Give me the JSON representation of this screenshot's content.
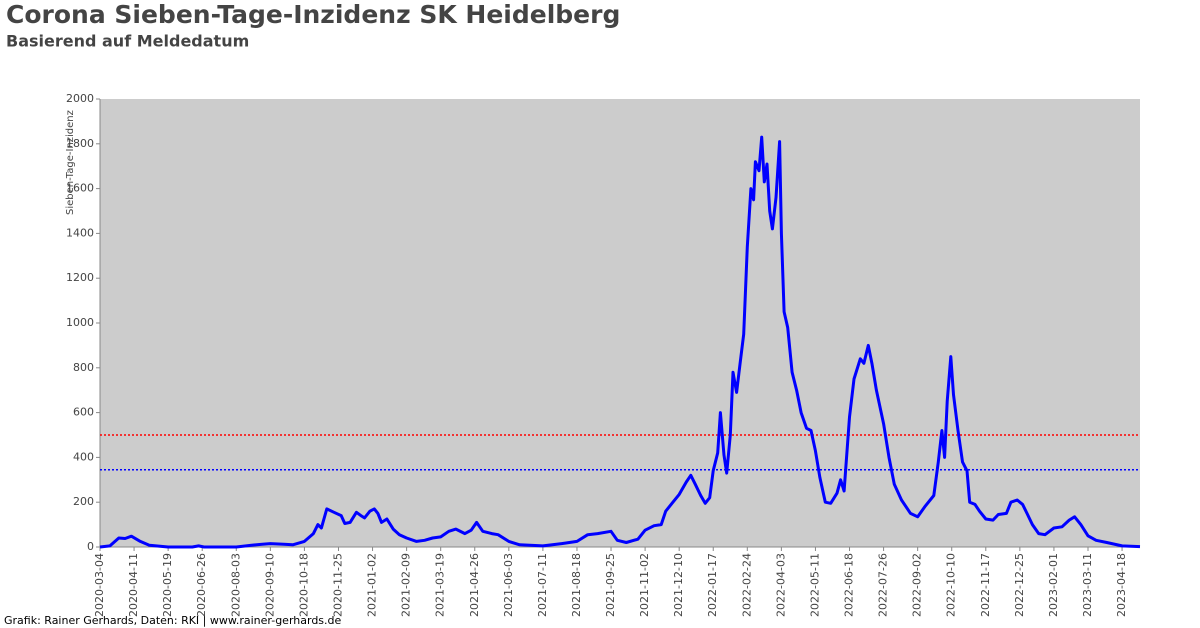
{
  "chart_data": {
    "type": "line",
    "title": "Corona Sieben-Tage-Inzidenz SK Heidelberg",
    "subtitle": "Basierend auf Meldedatum",
    "ylabel": "Sieben-Tage-Inzidenz",
    "footer": "Grafik: Rainer Gerhards, Daten: RKI | www.rainer-gerhards.de",
    "color": "#0000ff",
    "background": "#cccccc",
    "x": [
      "2020-03-04",
      "2020-03-15",
      "2020-03-25",
      "2020-04-01",
      "2020-04-08",
      "2020-04-18",
      "2020-04-28",
      "2020-05-10",
      "2020-05-19",
      "2020-06-15",
      "2020-06-22",
      "2020-06-28",
      "2020-08-03",
      "2020-08-20",
      "2020-09-01",
      "2020-09-10",
      "2020-09-25",
      "2020-10-05",
      "2020-10-18",
      "2020-10-28",
      "2020-11-02",
      "2020-11-06",
      "2020-11-12",
      "2020-11-20",
      "2020-11-28",
      "2020-12-02",
      "2020-12-08",
      "2020-12-15",
      "2020-12-20",
      "2020-12-24",
      "2020-12-30",
      "2021-01-04",
      "2021-01-08",
      "2021-01-12",
      "2021-01-18",
      "2021-01-25",
      "2021-02-01",
      "2021-02-09",
      "2021-02-20",
      "2021-03-01",
      "2021-03-10",
      "2021-03-19",
      "2021-03-28",
      "2021-04-05",
      "2021-04-15",
      "2021-04-22",
      "2021-04-28",
      "2021-05-05",
      "2021-05-15",
      "2021-05-22",
      "2021-06-03",
      "2021-06-15",
      "2021-07-11",
      "2021-08-01",
      "2021-08-18",
      "2021-08-30",
      "2021-09-10",
      "2021-09-25",
      "2021-10-02",
      "2021-10-12",
      "2021-10-25",
      "2021-11-02",
      "2021-11-12",
      "2021-11-20",
      "2021-11-25",
      "2021-12-03",
      "2021-12-10",
      "2021-12-18",
      "2021-12-23",
      "2021-12-28",
      "2022-01-03",
      "2022-01-08",
      "2022-01-13",
      "2022-01-17",
      "2022-01-22",
      "2022-01-25",
      "2022-01-29",
      "2022-02-01",
      "2022-02-05",
      "2022-02-08",
      "2022-02-12",
      "2022-02-16",
      "2022-02-20",
      "2022-02-24",
      "2022-02-28",
      "2022-03-03",
      "2022-03-05",
      "2022-03-09",
      "2022-03-12",
      "2022-03-15",
      "2022-03-18",
      "2022-03-21",
      "2022-03-24",
      "2022-03-28",
      "2022-04-01",
      "2022-04-03",
      "2022-04-06",
      "2022-04-10",
      "2022-04-15",
      "2022-04-20",
      "2022-04-25",
      "2022-05-01",
      "2022-05-06",
      "2022-05-11",
      "2022-05-16",
      "2022-05-22",
      "2022-05-28",
      "2022-06-04",
      "2022-06-08",
      "2022-06-12",
      "2022-06-18",
      "2022-06-23",
      "2022-06-30",
      "2022-07-04",
      "2022-07-09",
      "2022-07-13",
      "2022-07-18",
      "2022-07-26",
      "2022-08-01",
      "2022-08-07",
      "2022-08-15",
      "2022-08-25",
      "2022-09-02",
      "2022-09-10",
      "2022-09-20",
      "2022-09-25",
      "2022-09-29",
      "2022-10-02",
      "2022-10-05",
      "2022-10-09",
      "2022-10-12",
      "2022-10-17",
      "2022-10-22",
      "2022-10-27",
      "2022-10-30",
      "2022-11-05",
      "2022-11-10",
      "2022-11-17",
      "2022-11-25",
      "2022-12-01",
      "2022-12-10",
      "2022-12-15",
      "2022-12-22",
      "2022-12-28",
      "2023-01-02",
      "2023-01-08",
      "2023-01-15",
      "2023-01-22",
      "2023-02-01",
      "2023-02-10",
      "2023-02-18",
      "2023-02-24",
      "2023-03-03",
      "2023-03-11",
      "2023-03-20",
      "2023-04-01",
      "2023-04-18",
      "2023-05-08"
    ],
    "values": [
      0,
      5,
      40,
      38,
      48,
      25,
      8,
      3,
      0,
      0,
      5,
      0,
      0,
      8,
      12,
      15,
      12,
      10,
      25,
      60,
      100,
      85,
      170,
      155,
      140,
      105,
      110,
      155,
      140,
      130,
      160,
      170,
      150,
      110,
      125,
      80,
      55,
      40,
      25,
      30,
      40,
      45,
      70,
      80,
      60,
      75,
      110,
      70,
      60,
      55,
      25,
      10,
      5,
      15,
      25,
      55,
      60,
      70,
      30,
      20,
      35,
      75,
      95,
      100,
      160,
      200,
      235,
      290,
      320,
      280,
      230,
      195,
      220,
      340,
      420,
      600,
      410,
      330,
      500,
      780,
      690,
      820,
      950,
      1340,
      1600,
      1550,
      1720,
      1680,
      1830,
      1630,
      1710,
      1500,
      1420,
      1560,
      1810,
      1400,
      1050,
      980,
      780,
      700,
      600,
      530,
      520,
      430,
      310,
      200,
      195,
      240,
      300,
      250,
      580,
      750,
      840,
      820,
      900,
      820,
      700,
      550,
      400,
      280,
      210,
      150,
      135,
      180,
      230,
      380,
      520,
      400,
      650,
      850,
      680,
      520,
      380,
      340,
      200,
      190,
      160,
      125,
      120,
      145,
      150,
      200,
      210,
      190,
      150,
      100,
      60,
      55,
      85,
      90,
      120,
      135,
      100,
      50,
      30,
      20,
      5,
      2
    ],
    "xlim": [
      "2020-03-04",
      "2023-05-08"
    ],
    "xticks": [
      "2020-03-04",
      "2020-04-11",
      "2020-05-19",
      "2020-06-26",
      "2020-08-03",
      "2020-09-10",
      "2020-10-18",
      "2020-11-25",
      "2021-01-02",
      "2021-02-09",
      "2021-03-19",
      "2021-04-26",
      "2021-06-03",
      "2021-07-11",
      "2021-08-18",
      "2021-09-25",
      "2021-11-02",
      "2021-12-10",
      "2022-01-17",
      "2022-02-24",
      "2022-04-03",
      "2022-05-11",
      "2022-06-18",
      "2022-07-26",
      "2022-09-02",
      "2022-10-10",
      "2022-11-17",
      "2022-12-25",
      "2023-02-01",
      "2023-03-11",
      "2023-04-18"
    ],
    "ylim": [
      0,
      2000
    ],
    "yticks": [
      0,
      200,
      400,
      600,
      800,
      1000,
      1200,
      1400,
      1600,
      1800,
      2000
    ],
    "reference_lines": [
      {
        "value": 500,
        "color": "#ff0000"
      },
      {
        "value": 345,
        "color": "#0000ff"
      }
    ]
  }
}
